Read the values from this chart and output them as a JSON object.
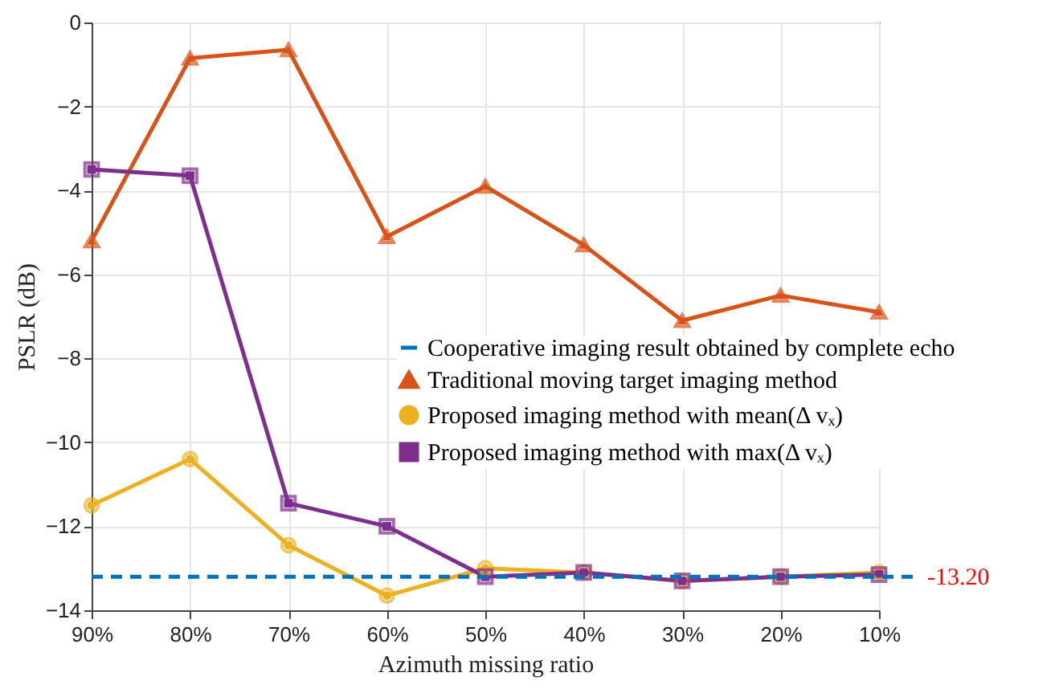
{
  "chart_data": {
    "type": "line",
    "xlabel": "Azimuth missing ratio",
    "ylabel": "PSLR (dB)",
    "categories": [
      "90%",
      "80%",
      "70%",
      "60%",
      "50%",
      "40%",
      "30%",
      "20%",
      "10%"
    ],
    "series": [
      {
        "name": "Traditional moving target imaging method",
        "color": "#d95319",
        "marker": "triangle",
        "values": [
          -5.2,
          -0.85,
          -0.65,
          -5.1,
          -3.9,
          -5.3,
          -7.1,
          -6.5,
          -6.9
        ]
      },
      {
        "name": "Proposed imaging method with mean(Δ vₓ)",
        "color": "#edb120",
        "marker": "circle",
        "values": [
          -11.5,
          -10.4,
          -12.45,
          -13.65,
          -13.0,
          -13.1,
          -13.3,
          -13.2,
          -13.1
        ]
      },
      {
        "name": "Proposed imaging method with max(Δ vₓ)",
        "color": "#7e2f8e",
        "marker": "square",
        "values": [
          -3.5,
          -3.65,
          -11.45,
          -12.0,
          -13.2,
          -13.1,
          -13.3,
          -13.2,
          -13.15
        ]
      }
    ],
    "ref_lines": [
      {
        "axis": "y",
        "value": -13.2,
        "label": "Cooperative imaging result obtained by complete echo",
        "color": "#0072bd",
        "line_style": "dashed"
      }
    ],
    "annotations": [
      "-13.20"
    ],
    "ylim": [
      -14,
      0
    ],
    "yticks": [
      -14,
      -12,
      -10,
      -8,
      -6,
      -4,
      -2,
      0
    ],
    "grid": true,
    "legend": "right",
    "line_style": "solid"
  }
}
